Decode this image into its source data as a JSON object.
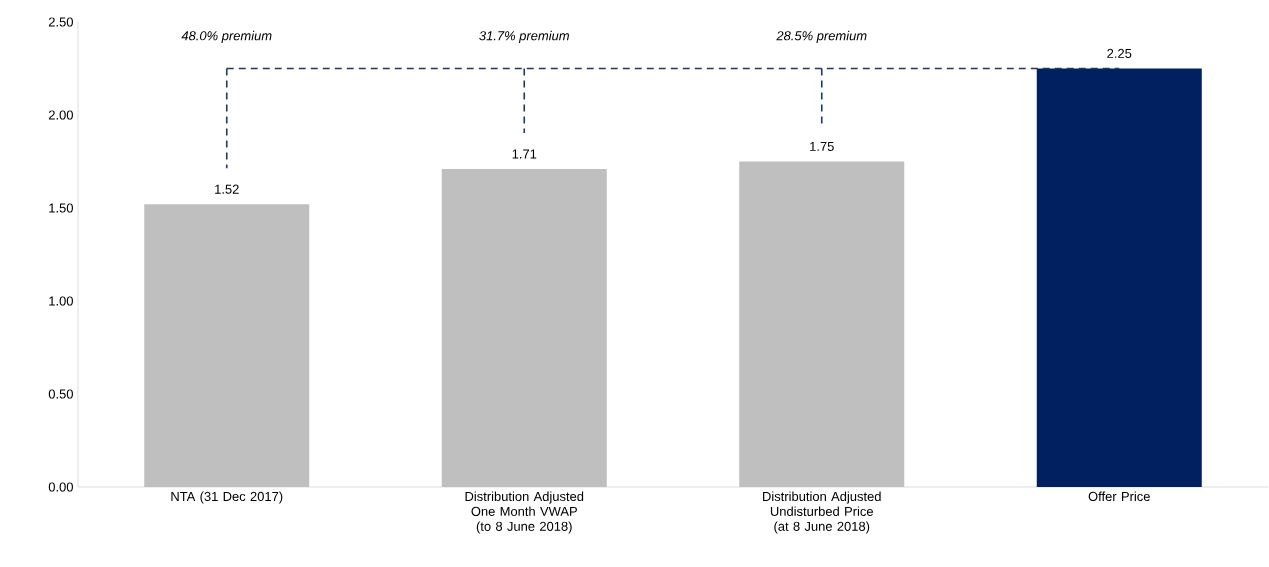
{
  "chart_data": {
    "type": "bar",
    "categories": [
      "NTA (31 Dec 2017)",
      "Distribution Adjusted One Month VWAP (to 8 June 2018)",
      "Distribution Adjusted Undisturbed Price (at 8 June 2018)",
      "Offer Price"
    ],
    "values": [
      1.52,
      1.71,
      1.75,
      2.25
    ],
    "colors": [
      "#bfbfbf",
      "#bfbfbf",
      "#bfbfbf",
      "#002060"
    ],
    "data_labels": true,
    "ylim": [
      0,
      2.5
    ],
    "yticks": [
      {
        "value": 0,
        "label": "0.00"
      },
      {
        "value": 0.5,
        "label": "0.50"
      },
      {
        "value": 1,
        "label": "1.00"
      },
      {
        "value": 1.5,
        "label": "1.50"
      },
      {
        "value": 2,
        "label": "2.00"
      },
      {
        "value": 2.5,
        "label": "2.50"
      }
    ],
    "annotations": [
      "48.0% premium",
      "31.7% premium",
      "28.5% premium"
    ],
    "ref_lines": [
      {
        "axis": "y",
        "value": 2.25,
        "color": "#1f3864",
        "line_style": "dashed"
      }
    ],
    "grid": false
  }
}
